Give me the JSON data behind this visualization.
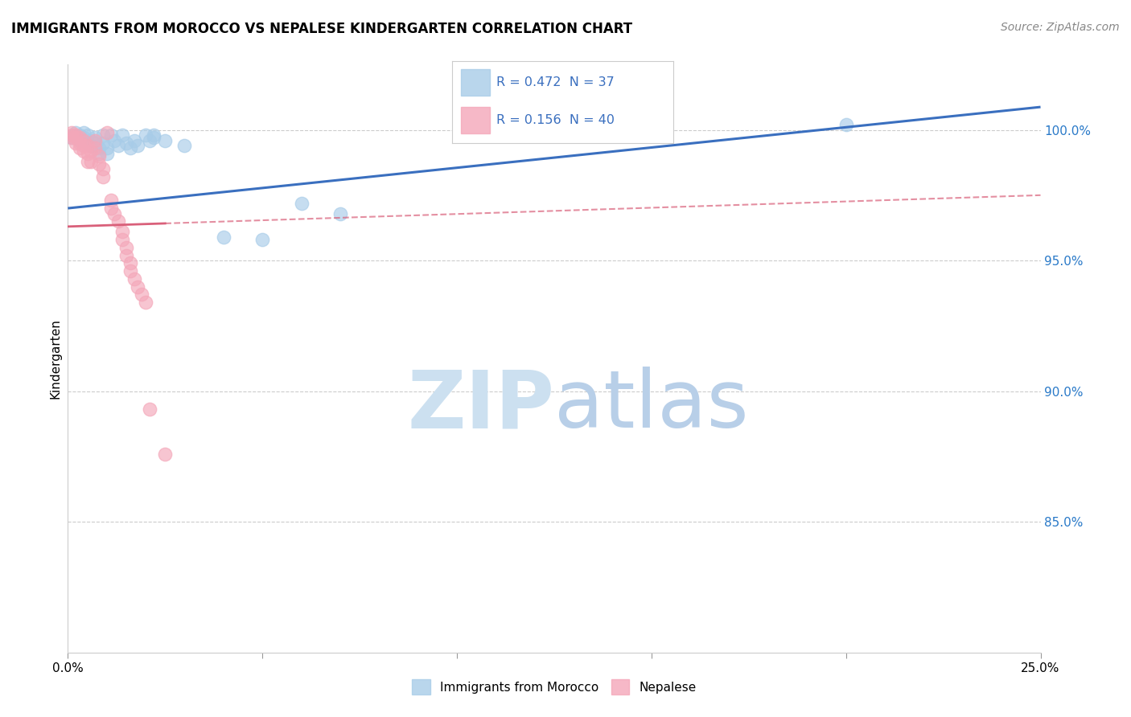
{
  "title": "IMMIGRANTS FROM MOROCCO VS NEPALESE KINDERGARTEN CORRELATION CHART",
  "source": "Source: ZipAtlas.com",
  "ylabel": "Kindergarten",
  "xmin": 0.0,
  "xmax": 0.25,
  "ymin": 0.8,
  "ymax": 1.025,
  "legend_blue_r": "R = 0.472",
  "legend_blue_n": "N = 37",
  "legend_pink_r": "R = 0.156",
  "legend_pink_n": "N = 40",
  "blue_color": "#a8cce8",
  "pink_color": "#f4a7b9",
  "blue_line_color": "#3a6fbf",
  "pink_line_color": "#d9607a",
  "blue_points": [
    [
      0.001,
      0.997
    ],
    [
      0.002,
      0.999
    ],
    [
      0.003,
      0.998
    ],
    [
      0.003,
      0.996
    ],
    [
      0.004,
      0.999
    ],
    [
      0.004,
      0.997
    ],
    [
      0.005,
      0.998
    ],
    [
      0.005,
      0.995
    ],
    [
      0.006,
      0.996
    ],
    [
      0.006,
      0.994
    ],
    [
      0.007,
      0.997
    ],
    [
      0.007,
      0.995
    ],
    [
      0.008,
      0.993
    ],
    [
      0.008,
      0.991
    ],
    [
      0.009,
      0.998
    ],
    [
      0.009,
      0.995
    ],
    [
      0.01,
      0.993
    ],
    [
      0.01,
      0.991
    ],
    [
      0.011,
      0.998
    ],
    [
      0.012,
      0.996
    ],
    [
      0.013,
      0.994
    ],
    [
      0.014,
      0.998
    ],
    [
      0.015,
      0.995
    ],
    [
      0.016,
      0.993
    ],
    [
      0.017,
      0.996
    ],
    [
      0.018,
      0.994
    ],
    [
      0.02,
      0.998
    ],
    [
      0.021,
      0.996
    ],
    [
      0.022,
      0.998
    ],
    [
      0.022,
      0.997
    ],
    [
      0.025,
      0.996
    ],
    [
      0.03,
      0.994
    ],
    [
      0.04,
      0.959
    ],
    [
      0.05,
      0.958
    ],
    [
      0.06,
      0.972
    ],
    [
      0.07,
      0.968
    ],
    [
      0.2,
      1.002
    ]
  ],
  "pink_points": [
    [
      0.001,
      0.999
    ],
    [
      0.001,
      0.998
    ],
    [
      0.001,
      0.997
    ],
    [
      0.002,
      0.998
    ],
    [
      0.002,
      0.997
    ],
    [
      0.002,
      0.995
    ],
    [
      0.003,
      0.997
    ],
    [
      0.003,
      0.995
    ],
    [
      0.003,
      0.993
    ],
    [
      0.004,
      0.996
    ],
    [
      0.004,
      0.994
    ],
    [
      0.004,
      0.992
    ],
    [
      0.005,
      0.994
    ],
    [
      0.005,
      0.991
    ],
    [
      0.005,
      0.988
    ],
    [
      0.006,
      0.992
    ],
    [
      0.006,
      0.988
    ],
    [
      0.007,
      0.996
    ],
    [
      0.007,
      0.993
    ],
    [
      0.008,
      0.99
    ],
    [
      0.008,
      0.987
    ],
    [
      0.009,
      0.985
    ],
    [
      0.009,
      0.982
    ],
    [
      0.01,
      0.999
    ],
    [
      0.011,
      0.973
    ],
    [
      0.011,
      0.97
    ],
    [
      0.012,
      0.968
    ],
    [
      0.013,
      0.965
    ],
    [
      0.014,
      0.961
    ],
    [
      0.014,
      0.958
    ],
    [
      0.015,
      0.955
    ],
    [
      0.015,
      0.952
    ],
    [
      0.016,
      0.949
    ],
    [
      0.016,
      0.946
    ],
    [
      0.017,
      0.943
    ],
    [
      0.018,
      0.94
    ],
    [
      0.019,
      0.937
    ],
    [
      0.02,
      0.934
    ],
    [
      0.021,
      0.893
    ],
    [
      0.025,
      0.876
    ]
  ]
}
